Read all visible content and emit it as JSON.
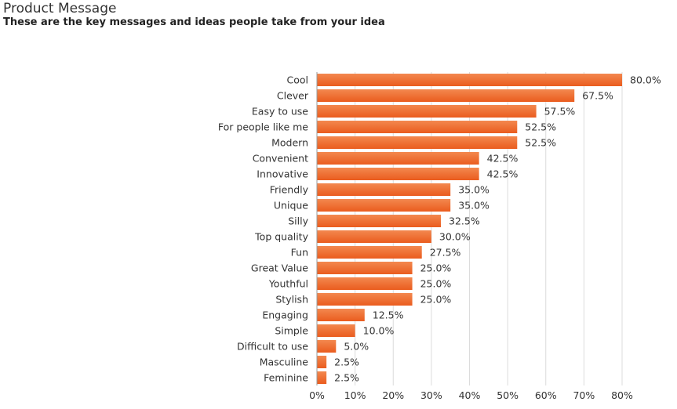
{
  "header": {
    "title": "Product Message",
    "subtitle": "These are the key messages and ideas people take from your idea"
  },
  "chart_data": {
    "type": "bar",
    "orientation": "horizontal",
    "categories": [
      "Cool",
      "Clever",
      "Easy to use",
      "For people like me",
      "Modern",
      "Convenient",
      "Innovative",
      "Friendly",
      "Unique",
      "Silly",
      "Top quality",
      "Fun",
      "Great Value",
      "Youthful",
      "Stylish",
      "Engaging",
      "Simple",
      "Difficult to use",
      "Masculine",
      "Feminine"
    ],
    "values": [
      80.0,
      67.5,
      57.5,
      52.5,
      52.5,
      42.5,
      42.5,
      35.0,
      35.0,
      32.5,
      30.0,
      27.5,
      25.0,
      25.0,
      25.0,
      12.5,
      10.0,
      5.0,
      2.5,
      2.5
    ],
    "value_labels": [
      "80.0%",
      "67.5%",
      "57.5%",
      "52.5%",
      "52.5%",
      "42.5%",
      "42.5%",
      "35.0%",
      "35.0%",
      "32.5%",
      "30.0%",
      "27.5%",
      "25.0%",
      "25.0%",
      "25.0%",
      "12.5%",
      "10.0%",
      "5.0%",
      "2.5%",
      "2.5%"
    ],
    "title": "Product Message",
    "subtitle": "These are the key messages and ideas people take from your idea",
    "xlabel": "",
    "ylabel": "",
    "xlim": [
      0,
      80
    ],
    "ticks": [
      0,
      10,
      20,
      30,
      40,
      50,
      60,
      70,
      80
    ],
    "tick_labels": [
      "0%",
      "10%",
      "20%",
      "30%",
      "40%",
      "50%",
      "60%",
      "70%",
      "80%"
    ],
    "grid": true,
    "legend": "none",
    "colors": {
      "bar": "#ea5c1e",
      "bar_light": "#f3884f",
      "grid": "#dcdcdc",
      "axis": "#999999"
    }
  }
}
